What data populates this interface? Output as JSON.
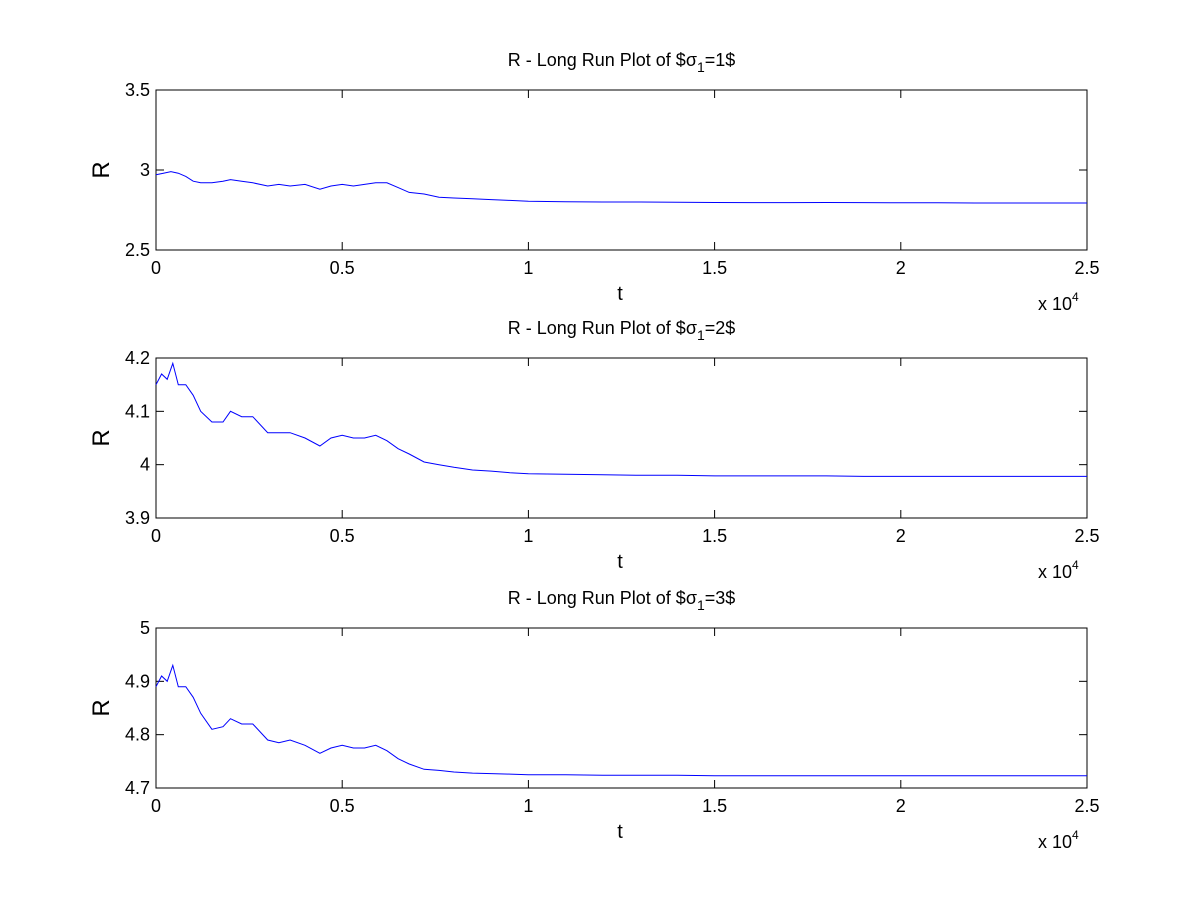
{
  "chart_data": [
    {
      "type": "line",
      "title": "R - Long Run Plot of $σ",
      "title_sub": "1",
      "title_tail": "=1$",
      "xlabel": "t",
      "ylabel": "R",
      "xlim": [
        0,
        25000
      ],
      "ylim": [
        2.5,
        3.5
      ],
      "x_ticks": [
        "0",
        "0.5",
        "1",
        "1.5",
        "2",
        "2.5"
      ],
      "y_ticks": [
        "2.5",
        "3",
        "3.5"
      ],
      "x_exponent_base": "x 10",
      "x_exponent_power": "4",
      "grid": false,
      "line_color": "#0000ff",
      "series": [
        {
          "x": [
            0,
            200,
            400,
            600,
            800,
            1000,
            1200,
            1500,
            1800,
            2000,
            2300,
            2600,
            3000,
            3300,
            3600,
            4000,
            4400,
            4700,
            5000,
            5300,
            5600,
            5900,
            6200,
            6500,
            6800,
            7200,
            7600,
            8000,
            8500,
            9000,
            9500,
            10000,
            11000,
            12000,
            13000,
            14000,
            15000,
            16000,
            17000,
            18000,
            19000,
            20000,
            21000,
            22000,
            23000,
            24000,
            25000
          ],
          "y": [
            2.97,
            2.98,
            2.99,
            2.98,
            2.96,
            2.93,
            2.92,
            2.92,
            2.93,
            2.94,
            2.93,
            2.92,
            2.9,
            2.91,
            2.9,
            2.91,
            2.88,
            2.9,
            2.91,
            2.9,
            2.91,
            2.92,
            2.92,
            2.89,
            2.86,
            2.85,
            2.83,
            2.825,
            2.82,
            2.815,
            2.81,
            2.805,
            2.802,
            2.8,
            2.8,
            2.799,
            2.797,
            2.796,
            2.796,
            2.797,
            2.796,
            2.795,
            2.795,
            2.794,
            2.794,
            2.794,
            2.794
          ]
        }
      ]
    },
    {
      "type": "line",
      "title": "R - Long Run Plot of $σ",
      "title_sub": "1",
      "title_tail": "=2$",
      "xlabel": "t",
      "ylabel": "R",
      "xlim": [
        0,
        25000
      ],
      "ylim": [
        3.9,
        4.2
      ],
      "x_ticks": [
        "0",
        "0.5",
        "1",
        "1.5",
        "2",
        "2.5"
      ],
      "y_ticks": [
        "3.9",
        "4",
        "4.1",
        "4.2"
      ],
      "x_exponent_base": "x 10",
      "x_exponent_power": "4",
      "grid": false,
      "line_color": "#0000ff",
      "series": [
        {
          "x": [
            0,
            150,
            300,
            450,
            600,
            800,
            1000,
            1200,
            1500,
            1800,
            2000,
            2300,
            2600,
            3000,
            3300,
            3600,
            4000,
            4400,
            4700,
            5000,
            5300,
            5600,
            5900,
            6200,
            6500,
            6800,
            7200,
            7600,
            8000,
            8500,
            9000,
            9500,
            10000,
            11000,
            12000,
            13000,
            14000,
            15000,
            16000,
            17000,
            18000,
            19000,
            20000,
            21000,
            22000,
            23000,
            24000,
            25000
          ],
          "y": [
            4.15,
            4.17,
            4.16,
            4.19,
            4.15,
            4.15,
            4.13,
            4.1,
            4.08,
            4.08,
            4.1,
            4.09,
            4.09,
            4.06,
            4.06,
            4.06,
            4.05,
            4.035,
            4.05,
            4.055,
            4.05,
            4.05,
            4.055,
            4.045,
            4.03,
            4.02,
            4.005,
            4.0,
            3.995,
            3.99,
            3.988,
            3.985,
            3.983,
            3.982,
            3.981,
            3.98,
            3.98,
            3.979,
            3.979,
            3.979,
            3.979,
            3.978,
            3.978,
            3.978,
            3.978,
            3.978,
            3.978,
            3.978
          ]
        }
      ]
    },
    {
      "type": "line",
      "title": "R - Long Run Plot of $σ",
      "title_sub": "1",
      "title_tail": "=3$",
      "xlabel": "t",
      "ylabel": "R",
      "xlim": [
        0,
        25000
      ],
      "ylim": [
        4.7,
        5.0
      ],
      "x_ticks": [
        "0",
        "0.5",
        "1",
        "1.5",
        "2",
        "2.5"
      ],
      "y_ticks": [
        "4.7",
        "4.8",
        "4.9",
        "5"
      ],
      "x_exponent_base": "x 10",
      "x_exponent_power": "4",
      "grid": false,
      "line_color": "#0000ff",
      "series": [
        {
          "x": [
            0,
            150,
            300,
            450,
            600,
            800,
            1000,
            1200,
            1500,
            1800,
            2000,
            2300,
            2600,
            3000,
            3300,
            3600,
            4000,
            4400,
            4700,
            5000,
            5300,
            5600,
            5900,
            6200,
            6500,
            6800,
            7200,
            7600,
            8000,
            8500,
            9000,
            9500,
            10000,
            11000,
            12000,
            13000,
            14000,
            15000,
            16000,
            17000,
            18000,
            19000,
            20000,
            21000,
            22000,
            23000,
            24000,
            25000
          ],
          "y": [
            4.89,
            4.91,
            4.9,
            4.93,
            4.89,
            4.89,
            4.87,
            4.84,
            4.81,
            4.815,
            4.83,
            4.82,
            4.82,
            4.79,
            4.785,
            4.79,
            4.78,
            4.765,
            4.775,
            4.78,
            4.775,
            4.775,
            4.78,
            4.77,
            4.755,
            4.745,
            4.735,
            4.733,
            4.73,
            4.728,
            4.727,
            4.726,
            4.725,
            4.725,
            4.724,
            4.724,
            4.724,
            4.723,
            4.723,
            4.723,
            4.723,
            4.723,
            4.723,
            4.723,
            4.723,
            4.723,
            4.723,
            4.723
          ]
        }
      ]
    }
  ]
}
